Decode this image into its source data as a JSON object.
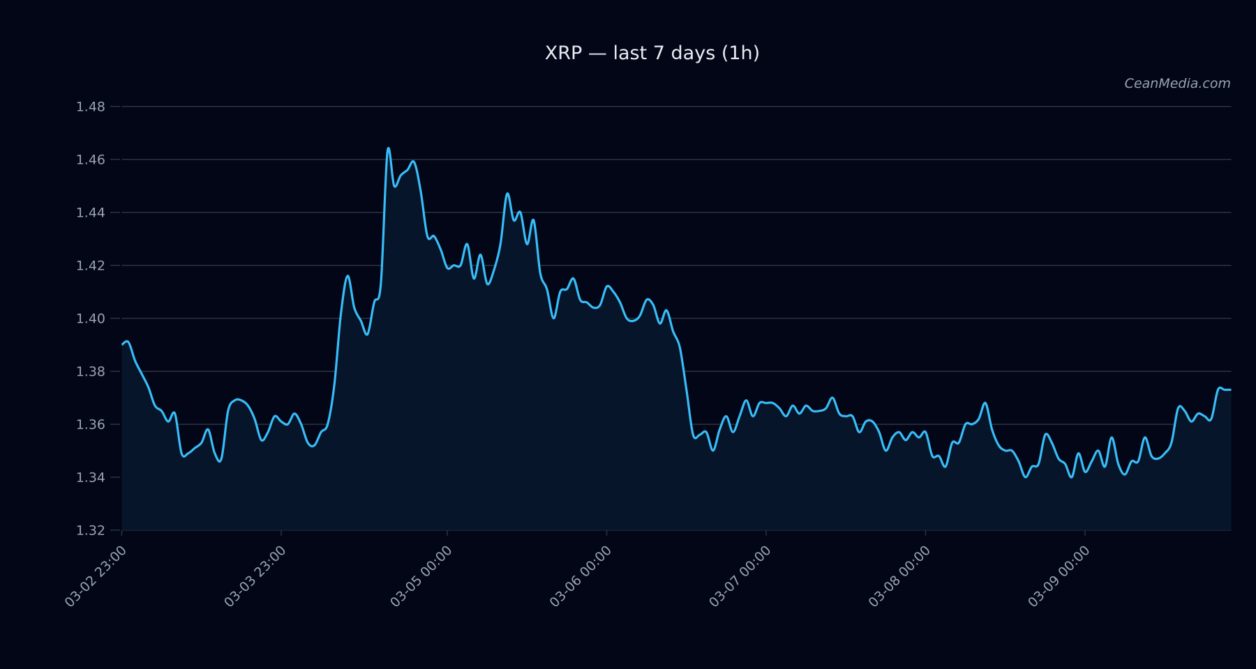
{
  "chart_data": {
    "type": "area",
    "title": "XRP — last 7 days (1h)",
    "watermark": "CeanMedia.com",
    "xlabel": "",
    "ylabel": "",
    "ylim": [
      1.32,
      1.48
    ],
    "yticks": [
      "1.32",
      "1.34",
      "1.36",
      "1.38",
      "1.40",
      "1.42",
      "1.44",
      "1.46",
      "1.48"
    ],
    "xticks": [
      "03-02 23:00",
      "03-03 23:00",
      "03-05 00:00",
      "03-06 00:00",
      "03-07 00:00",
      "03-08 00:00",
      "03-09 00:00"
    ],
    "grid": true,
    "colors": {
      "background": "#020617",
      "line": "#38bdf8",
      "fill": "#061529",
      "grid": "#2b3442",
      "text": "#9aa3b0"
    },
    "x": [
      "03-02 23:00",
      "03-03 00:00",
      "03-03 01:00",
      "03-03 02:00",
      "03-03 03:00",
      "03-03 04:00",
      "03-03 05:00",
      "03-03 06:00",
      "03-03 07:00",
      "03-03 08:00",
      "03-03 09:00",
      "03-03 10:00",
      "03-03 11:00",
      "03-03 12:00",
      "03-03 13:00",
      "03-03 14:00",
      "03-03 15:00",
      "03-03 16:00",
      "03-03 17:00",
      "03-03 18:00",
      "03-03 19:00",
      "03-03 20:00",
      "03-03 21:00",
      "03-03 22:00",
      "03-03 23:00",
      "03-04 00:00",
      "03-04 01:00",
      "03-04 02:00",
      "03-04 03:00",
      "03-04 04:00",
      "03-04 05:00",
      "03-04 06:00",
      "03-04 07:00",
      "03-04 08:00",
      "03-04 09:00",
      "03-04 10:00",
      "03-04 11:00",
      "03-04 12:00",
      "03-04 13:00",
      "03-04 14:00",
      "03-04 15:00",
      "03-04 16:00",
      "03-04 17:00",
      "03-04 18:00",
      "03-04 19:00",
      "03-04 20:00",
      "03-04 21:00",
      "03-04 22:00",
      "03-04 23:00",
      "03-05 00:00",
      "03-05 01:00",
      "03-05 02:00",
      "03-05 03:00",
      "03-05 04:00",
      "03-05 05:00",
      "03-05 06:00",
      "03-05 07:00",
      "03-05 08:00",
      "03-05 09:00",
      "03-05 10:00",
      "03-05 11:00",
      "03-05 12:00",
      "03-05 13:00",
      "03-05 14:00",
      "03-05 15:00",
      "03-05 16:00",
      "03-05 17:00",
      "03-05 18:00",
      "03-05 19:00",
      "03-05 20:00",
      "03-05 21:00",
      "03-05 22:00",
      "03-05 23:00",
      "03-06 00:00",
      "03-06 01:00",
      "03-06 02:00",
      "03-06 03:00",
      "03-06 04:00",
      "03-06 05:00",
      "03-06 06:00",
      "03-06 07:00",
      "03-06 08:00",
      "03-06 09:00",
      "03-06 10:00",
      "03-06 11:00",
      "03-06 12:00",
      "03-06 13:00",
      "03-06 14:00",
      "03-06 15:00",
      "03-06 16:00",
      "03-06 17:00",
      "03-06 18:00",
      "03-06 19:00",
      "03-06 20:00",
      "03-06 21:00",
      "03-06 22:00",
      "03-06 23:00",
      "03-07 00:00",
      "03-07 01:00",
      "03-07 02:00",
      "03-07 03:00",
      "03-07 04:00",
      "03-07 05:00",
      "03-07 06:00",
      "03-07 07:00",
      "03-07 08:00",
      "03-07 09:00",
      "03-07 10:00",
      "03-07 11:00",
      "03-07 12:00",
      "03-07 13:00",
      "03-07 14:00",
      "03-07 15:00",
      "03-07 16:00",
      "03-07 17:00",
      "03-07 18:00",
      "03-07 19:00",
      "03-07 20:00",
      "03-07 21:00",
      "03-07 22:00",
      "03-07 23:00",
      "03-08 00:00",
      "03-08 01:00",
      "03-08 02:00",
      "03-08 03:00",
      "03-08 04:00",
      "03-08 05:00",
      "03-08 06:00",
      "03-08 07:00",
      "03-08 08:00",
      "03-08 09:00",
      "03-08 10:00",
      "03-08 11:00",
      "03-08 12:00",
      "03-08 13:00",
      "03-08 14:00",
      "03-08 15:00",
      "03-08 16:00",
      "03-08 17:00",
      "03-08 18:00",
      "03-08 19:00",
      "03-08 20:00",
      "03-08 21:00",
      "03-08 22:00",
      "03-08 23:00",
      "03-09 00:00",
      "03-09 01:00",
      "03-09 02:00",
      "03-09 03:00",
      "03-09 04:00",
      "03-09 05:00",
      "03-09 06:00",
      "03-09 07:00",
      "03-09 08:00",
      "03-09 09:00",
      "03-09 10:00",
      "03-09 11:00",
      "03-09 12:00",
      "03-09 13:00",
      "03-09 14:00",
      "03-09 15:00",
      "03-09 16:00",
      "03-09 17:00",
      "03-09 18:00",
      "03-09 19:00",
      "03-09 20:00",
      "03-09 21:00",
      "03-09 22:00"
    ],
    "series": [
      {
        "values": [
          1.39,
          1.391,
          1.384,
          1.379,
          1.374,
          1.367,
          1.365,
          1.361,
          1.364,
          1.349,
          1.349,
          1.351,
          1.353,
          1.358,
          1.349,
          1.347,
          1.365,
          1.369,
          1.369,
          1.367,
          1.362,
          1.354,
          1.357,
          1.363,
          1.361,
          1.36,
          1.364,
          1.36,
          1.353,
          1.352,
          1.357,
          1.36,
          1.375,
          1.402,
          1.416,
          1.404,
          1.399,
          1.394,
          1.406,
          1.413,
          1.463,
          1.45,
          1.454,
          1.456,
          1.459,
          1.448,
          1.431,
          1.431,
          1.426,
          1.419,
          1.42,
          1.42,
          1.428,
          1.415,
          1.424,
          1.413,
          1.418,
          1.428,
          1.447,
          1.437,
          1.44,
          1.428,
          1.437,
          1.417,
          1.411,
          1.4,
          1.41,
          1.411,
          1.415,
          1.407,
          1.406,
          1.404,
          1.405,
          1.412,
          1.41,
          1.406,
          1.4,
          1.399,
          1.401,
          1.407,
          1.405,
          1.398,
          1.403,
          1.395,
          1.389,
          1.373,
          1.356,
          1.356,
          1.357,
          1.35,
          1.358,
          1.363,
          1.357,
          1.363,
          1.369,
          1.363,
          1.368,
          1.368,
          1.368,
          1.366,
          1.363,
          1.367,
          1.364,
          1.367,
          1.365,
          1.365,
          1.366,
          1.37,
          1.364,
          1.363,
          1.363,
          1.357,
          1.361,
          1.361,
          1.357,
          1.35,
          1.355,
          1.357,
          1.354,
          1.357,
          1.355,
          1.357,
          1.348,
          1.348,
          1.344,
          1.353,
          1.353,
          1.36,
          1.36,
          1.362,
          1.368,
          1.358,
          1.352,
          1.35,
          1.35,
          1.346,
          1.34,
          1.344,
          1.345,
          1.356,
          1.353,
          1.347,
          1.345,
          1.34,
          1.349,
          1.342,
          1.346,
          1.35,
          1.344,
          1.355,
          1.345,
          1.341,
          1.346,
          1.346,
          1.355,
          1.348,
          1.347,
          1.349,
          1.353,
          1.366,
          1.365,
          1.361,
          1.364,
          1.363,
          1.362,
          1.373,
          1.373,
          1.373
        ]
      }
    ]
  }
}
